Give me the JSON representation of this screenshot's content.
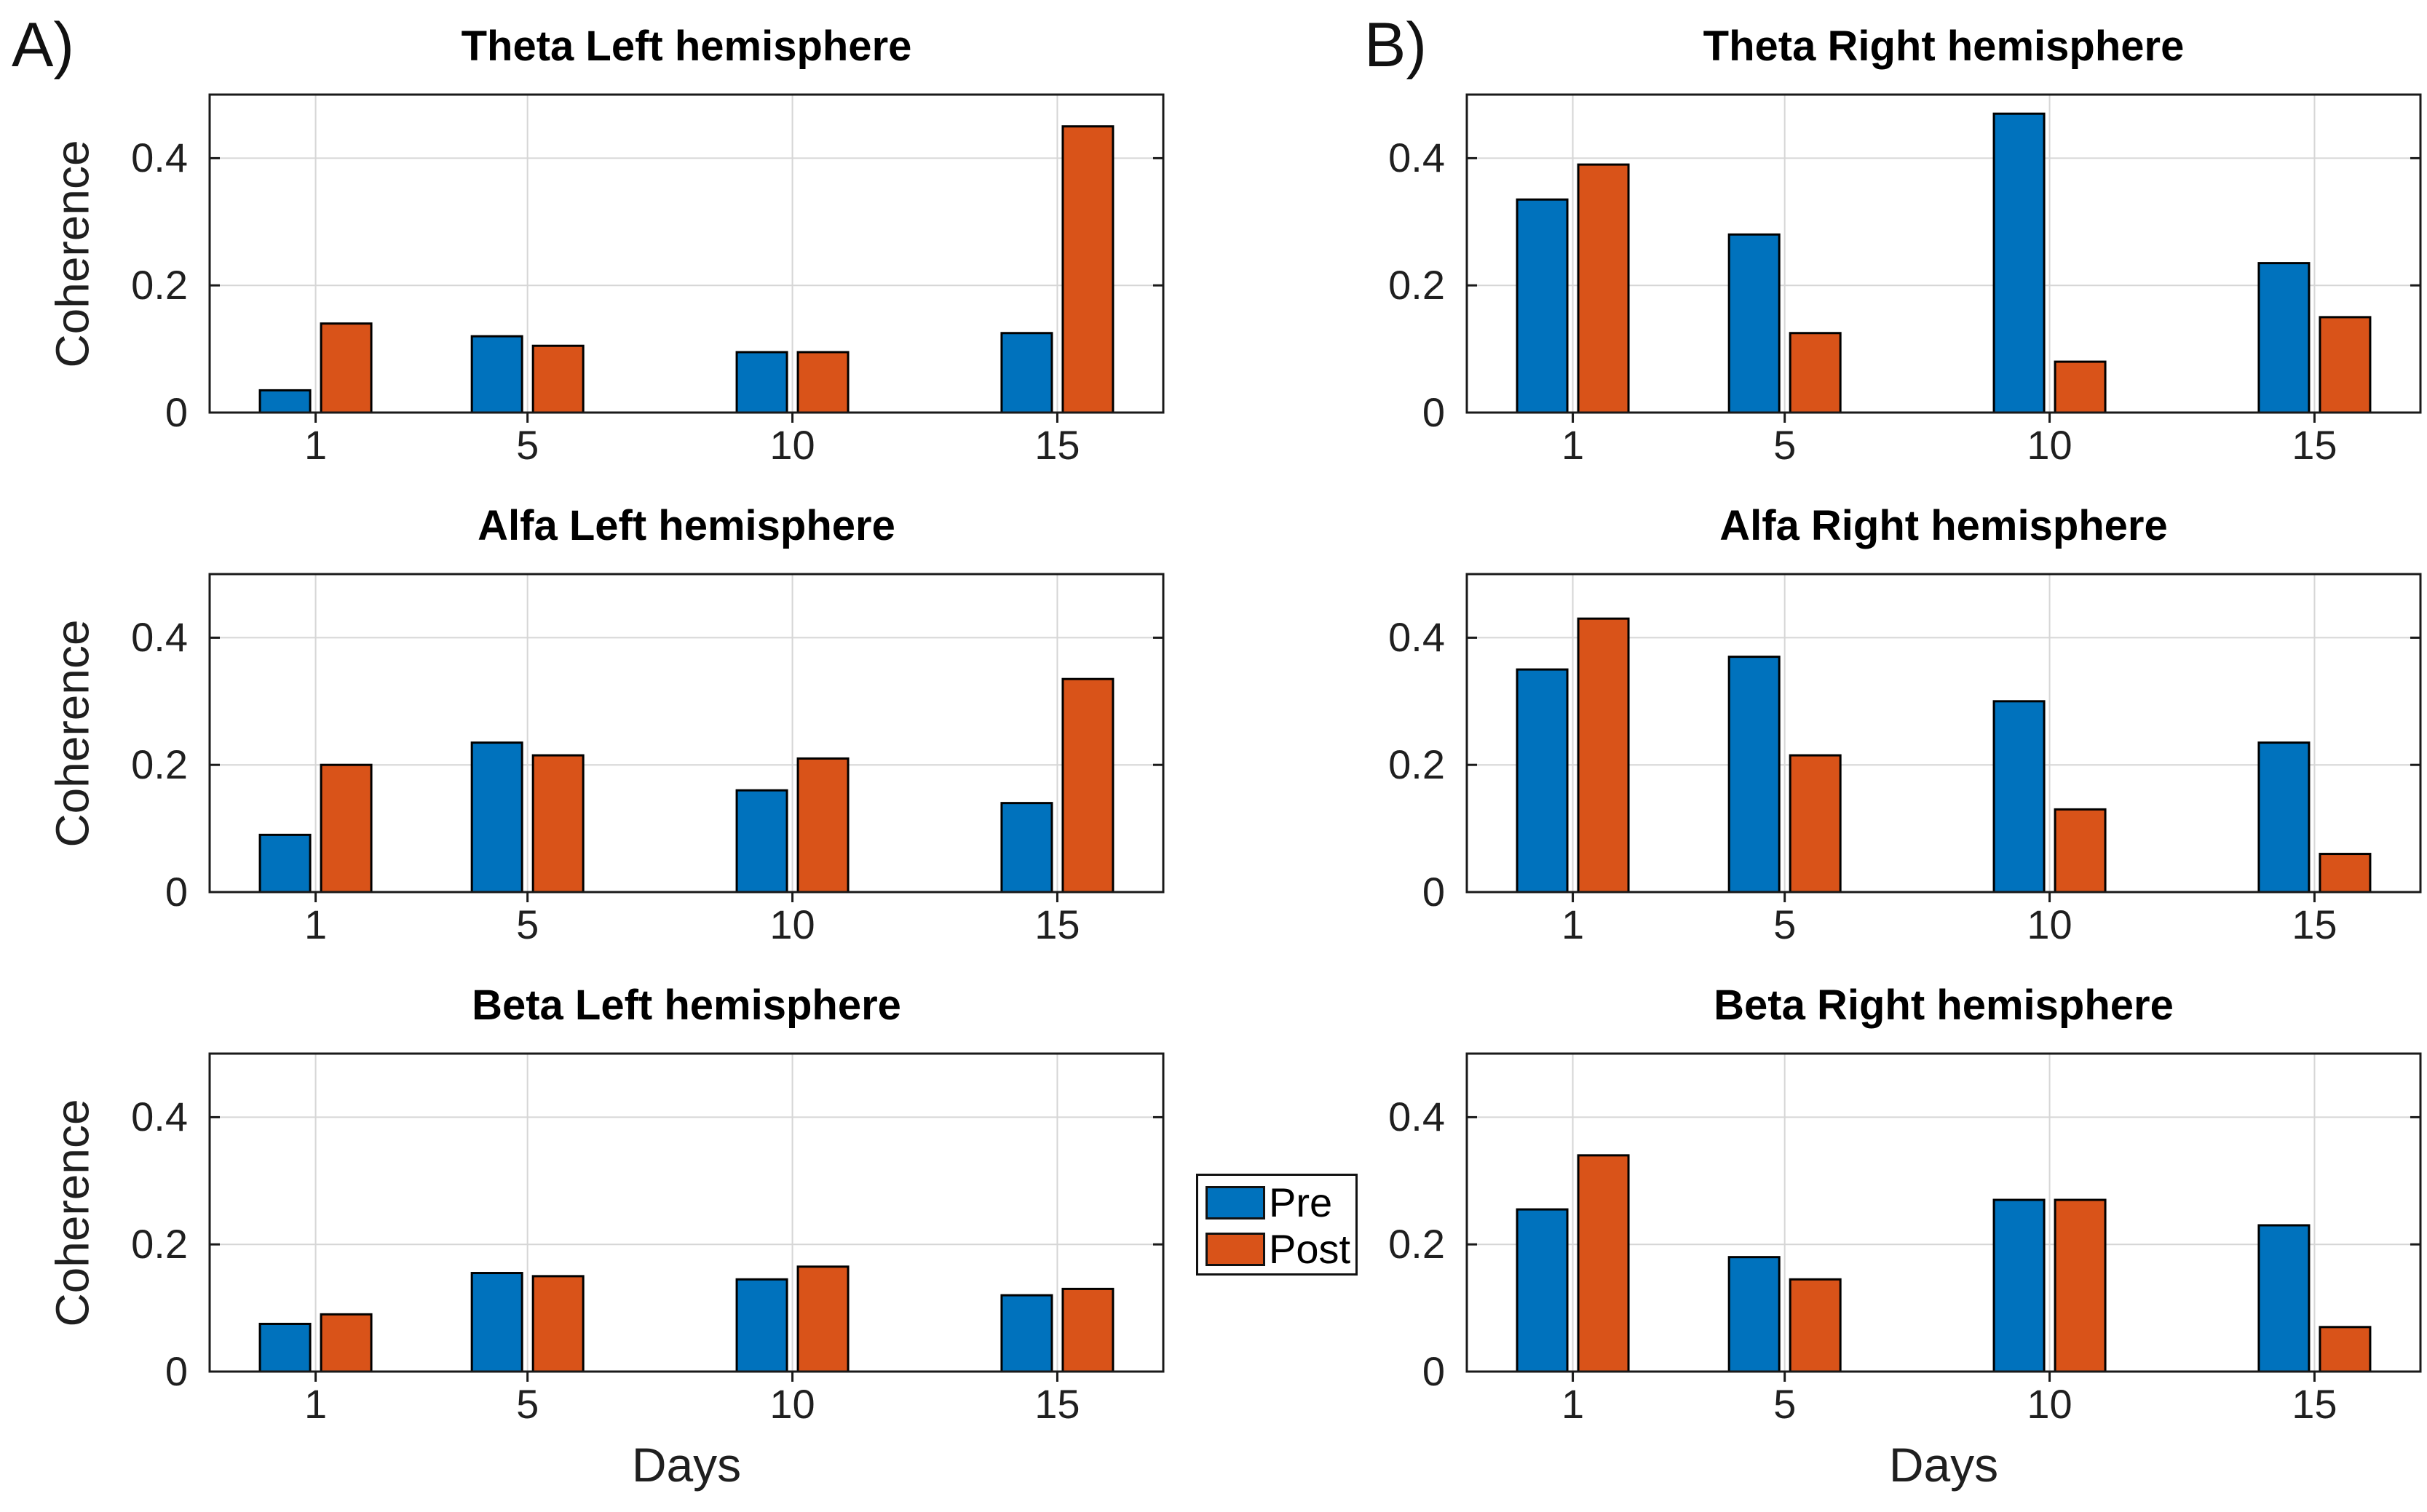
{
  "figure": {
    "background": "#ffffff"
  },
  "panels": {
    "a": "A)",
    "b": "B)"
  },
  "legend": {
    "position": "center-between-bottom-plots",
    "items": [
      {
        "label": "Pre",
        "color": "#0072BD"
      },
      {
        "label": "Post",
        "color": "#D95319"
      }
    ]
  },
  "colors": {
    "pre": "#0072BD",
    "post": "#D95319",
    "bar_edge": "#000000",
    "grid": "#d6d6d6",
    "axis": "#1a1a1a"
  },
  "axes": {
    "ylim": [
      0,
      0.5
    ],
    "xlim": [
      -1,
      17
    ],
    "y_ticks": [
      0,
      0.2,
      0.4
    ],
    "y_tick_labels": [
      "0",
      "0.2",
      "0.4"
    ],
    "x_ticks": [
      1,
      5,
      10,
      15
    ],
    "x_tick_labels": [
      "1",
      "5",
      "10",
      "15"
    ],
    "grid": true
  },
  "chart_data": [
    {
      "type": "bar",
      "title": "Theta Left hemisphere",
      "categories": [
        1,
        5,
        10,
        15
      ],
      "series": [
        {
          "name": "Pre",
          "values": [
            0.035,
            0.12,
            0.095,
            0.125
          ]
        },
        {
          "name": "Post",
          "values": [
            0.14,
            0.105,
            0.095,
            0.45
          ]
        }
      ],
      "ylabel": "Coherence",
      "xlabel": "",
      "ylim": [
        0,
        0.5
      ]
    },
    {
      "type": "bar",
      "title": "Theta Right hemisphere",
      "categories": [
        1,
        5,
        10,
        15
      ],
      "series": [
        {
          "name": "Pre",
          "values": [
            0.335,
            0.28,
            0.47,
            0.235
          ]
        },
        {
          "name": "Post",
          "values": [
            0.39,
            0.125,
            0.08,
            0.15
          ]
        }
      ],
      "ylabel": "",
      "xlabel": "",
      "ylim": [
        0,
        0.5
      ]
    },
    {
      "type": "bar",
      "title": "Alfa Left hemisphere",
      "categories": [
        1,
        5,
        10,
        15
      ],
      "series": [
        {
          "name": "Pre",
          "values": [
            0.09,
            0.235,
            0.16,
            0.14
          ]
        },
        {
          "name": "Post",
          "values": [
            0.2,
            0.215,
            0.21,
            0.335
          ]
        }
      ],
      "ylabel": "Coherence",
      "xlabel": "",
      "ylim": [
        0,
        0.5
      ]
    },
    {
      "type": "bar",
      "title": "Alfa Right hemisphere",
      "categories": [
        1,
        5,
        10,
        15
      ],
      "series": [
        {
          "name": "Pre",
          "values": [
            0.35,
            0.37,
            0.3,
            0.235
          ]
        },
        {
          "name": "Post",
          "values": [
            0.43,
            0.215,
            0.13,
            0.06
          ]
        }
      ],
      "ylabel": "",
      "xlabel": "",
      "ylim": [
        0,
        0.5
      ]
    },
    {
      "type": "bar",
      "title": "Beta Left hemisphere",
      "categories": [
        1,
        5,
        10,
        15
      ],
      "series": [
        {
          "name": "Pre",
          "values": [
            0.075,
            0.155,
            0.145,
            0.12
          ]
        },
        {
          "name": "Post",
          "values": [
            0.09,
            0.15,
            0.165,
            0.13
          ]
        }
      ],
      "ylabel": "Coherence",
      "xlabel": "Days",
      "ylim": [
        0,
        0.5
      ]
    },
    {
      "type": "bar",
      "title": "Beta Right hemisphere",
      "categories": [
        1,
        5,
        10,
        15
      ],
      "series": [
        {
          "name": "Pre",
          "values": [
            0.255,
            0.18,
            0.27,
            0.23
          ]
        },
        {
          "name": "Post",
          "values": [
            0.34,
            0.145,
            0.27,
            0.07
          ]
        }
      ],
      "ylabel": "",
      "xlabel": "Days",
      "ylim": [
        0,
        0.5
      ]
    }
  ]
}
